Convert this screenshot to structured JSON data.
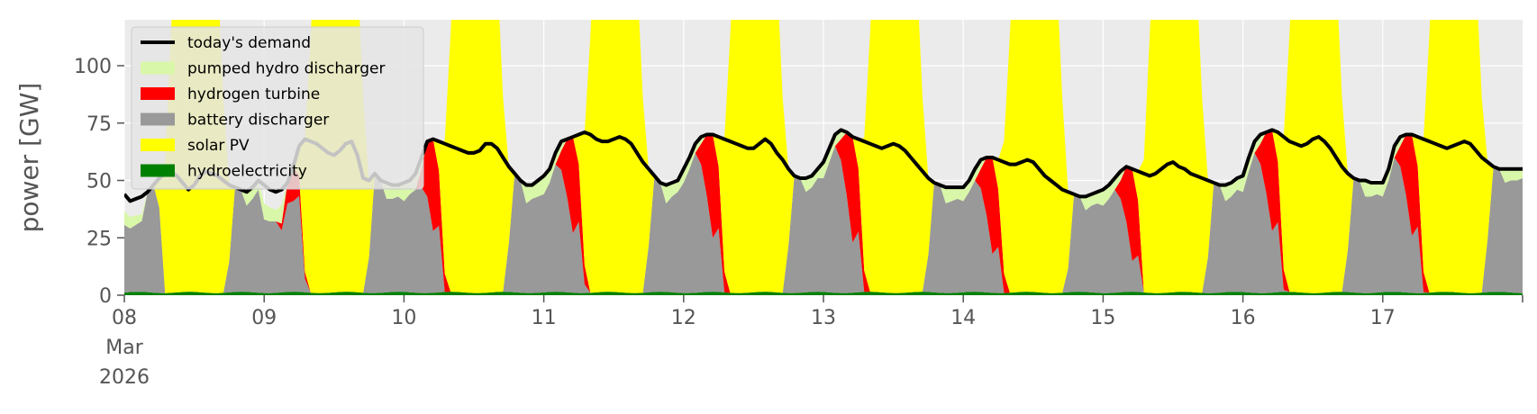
{
  "chart_data": {
    "type": "area",
    "ylabel": "power [GW]",
    "ylim": [
      0,
      120
    ],
    "yticks": [
      0,
      25,
      50,
      75,
      100
    ],
    "xlim_days": [
      0,
      10
    ],
    "xticks": [
      {
        "day": 0,
        "lines": [
          "08",
          "Mar",
          "2026"
        ]
      },
      {
        "day": 1,
        "lines": [
          "09"
        ]
      },
      {
        "day": 2,
        "lines": [
          "10"
        ]
      },
      {
        "day": 3,
        "lines": [
          "11"
        ]
      },
      {
        "day": 4,
        "lines": [
          "12"
        ]
      },
      {
        "day": 5,
        "lines": [
          "13"
        ]
      },
      {
        "day": 6,
        "lines": [
          "14"
        ]
      },
      {
        "day": 7,
        "lines": [
          "15"
        ]
      },
      {
        "day": 8,
        "lines": [
          "16"
        ]
      },
      {
        "day": 9,
        "lines": [
          "17"
        ]
      }
    ],
    "legend": {
      "placement": "top-left",
      "entries": [
        {
          "label": "today's demand",
          "color": "#000000",
          "kind": "line"
        },
        {
          "label": "pumped hydro discharger",
          "color": "#d9f7a8",
          "kind": "patch"
        },
        {
          "label": "hydrogen turbine",
          "color": "#ff0000",
          "kind": "patch"
        },
        {
          "label": "battery discharger",
          "color": "#999999",
          "kind": "patch"
        },
        {
          "label": "solar PV",
          "color": "#ffff00",
          "kind": "patch"
        },
        {
          "label": "hydroelectricity",
          "color": "#008000",
          "kind": "patch"
        }
      ]
    },
    "stack_order": [
      "hydroelectricity",
      "battery discharger",
      "hydrogen turbine",
      "pumped hydro discharger",
      "solar PV"
    ],
    "colors": {
      "hydroelectricity": "#008000",
      "battery discharger": "#999999",
      "hydrogen turbine": "#ff0000",
      "pumped hydro discharger": "#d9f7a8",
      "solar PV": "#ffff00",
      "demand": "#000000",
      "background": "#ebebeb",
      "grid": "#ffffff"
    },
    "days": [
      {
        "demand": [
          44,
          41,
          42,
          43,
          45,
          48,
          51,
          53,
          54,
          52,
          49,
          46,
          48,
          52,
          54,
          53,
          52,
          50,
          48,
          47,
          46,
          45,
          47,
          50,
          52
        ],
        "hydro_gap": [
          [
            1,
            3
          ],
          [
            0,
            1
          ],
          [
            2,
            3
          ]
        ],
        "h2_depth": 0,
        "pumped": [
          6,
          5,
          4,
          3
        ]
      },
      {
        "demand": [
          48,
          46,
          45,
          46,
          49,
          56,
          65,
          68,
          67,
          66,
          64,
          62,
          61,
          63,
          66,
          67,
          61,
          51,
          50,
          53,
          50,
          49,
          48,
          48,
          49
        ],
        "hydro_gap": [
          [
            0,
            3
          ]
        ],
        "h2_depth": 15,
        "pumped": [
          7,
          6,
          5,
          8
        ]
      },
      {
        "demand": [
          49,
          50,
          53,
          60,
          67,
          68,
          67,
          66,
          65,
          64,
          63,
          62,
          62,
          63,
          66,
          66,
          64,
          60,
          56,
          53,
          50,
          48,
          48,
          50,
          52
        ],
        "hydro_gap": [],
        "h2_depth": 40,
        "pumped": [
          8,
          6,
          7,
          5
        ]
      },
      {
        "demand": [
          52,
          55,
          62,
          67,
          68,
          69,
          70,
          71,
          70,
          68,
          67,
          67,
          68,
          69,
          68,
          66,
          62,
          58,
          55,
          52,
          49,
          48,
          49,
          50,
          52
        ],
        "hydro_gap": [],
        "h2_depth": 42,
        "pumped": [
          8,
          6,
          5,
          4
        ]
      },
      {
        "demand": [
          55,
          60,
          66,
          69,
          70,
          70,
          69,
          68,
          67,
          66,
          65,
          64,
          64,
          66,
          68,
          66,
          62,
          59,
          55,
          52,
          51,
          51,
          52,
          55,
          58
        ],
        "hydro_gap": [],
        "h2_depth": 45,
        "pumped": [
          6,
          5,
          4,
          3
        ]
      },
      {
        "demand": [
          58,
          64,
          70,
          72,
          71,
          69,
          68,
          67,
          66,
          65,
          64,
          65,
          66,
          65,
          63,
          60,
          57,
          54,
          51,
          49,
          48,
          47,
          47,
          47,
          48
        ],
        "hydro_gap": [],
        "h2_depth": 46,
        "pumped": [
          7,
          6,
          5,
          4
        ]
      },
      {
        "demand": [
          47,
          50,
          55,
          59,
          60,
          60,
          59,
          58,
          57,
          57,
          58,
          59,
          58,
          55,
          52,
          50,
          48,
          46,
          45,
          44,
          43,
          43,
          44,
          45,
          46
        ],
        "hydro_gap": [],
        "h2_depth": 42,
        "pumped": [
          6,
          5,
          5,
          4
        ]
      },
      {
        "demand": [
          46,
          48,
          51,
          54,
          56,
          55,
          54,
          53,
          52,
          53,
          55,
          57,
          58,
          56,
          55,
          53,
          52,
          51,
          50,
          49,
          48,
          48,
          49,
          51,
          55
        ],
        "hydro_gap": [],
        "h2_depth": 40,
        "pumped": [
          7,
          6,
          5,
          4
        ]
      },
      {
        "demand": [
          52,
          60,
          67,
          70,
          71,
          72,
          71,
          69,
          67,
          66,
          65,
          66,
          68,
          69,
          67,
          64,
          60,
          56,
          53,
          51,
          50,
          50,
          49,
          49,
          49
        ],
        "hydro_gap": [],
        "h2_depth": 44,
        "pumped": [
          7,
          6,
          5,
          4
        ]
      },
      {
        "demand": [
          49,
          55,
          65,
          69,
          70,
          70,
          69,
          68,
          67,
          66,
          65,
          64,
          65,
          66,
          67,
          66,
          63,
          60,
          58,
          56,
          55,
          55,
          55,
          55,
          55
        ],
        "hydro_gap": [],
        "h2_depth": 44,
        "pumped": [
          6,
          5,
          5,
          4
        ]
      }
    ]
  }
}
